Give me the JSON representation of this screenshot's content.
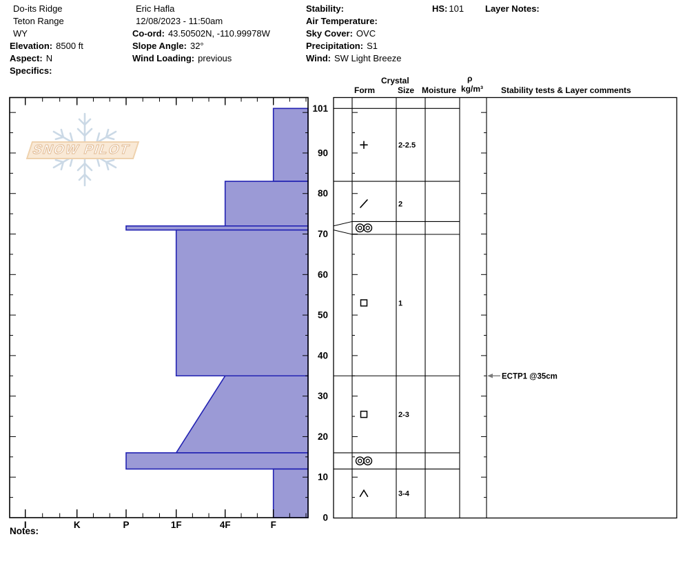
{
  "header": {
    "col1": [
      {
        "label": "",
        "value": "Do-its Ridge"
      },
      {
        "label": "",
        "value": "Teton Range"
      },
      {
        "label": "",
        "value": "WY"
      },
      {
        "label": "Elevation:",
        "value": "8500 ft"
      },
      {
        "label": "Aspect:",
        "value": "N"
      },
      {
        "label": "Specifics:",
        "value": ""
      }
    ],
    "col2": [
      {
        "label": "",
        "value": "Eric Hafla"
      },
      {
        "label": "",
        "value": "12/08/2023 - 11:50am"
      },
      {
        "label": "Co-ord:",
        "value": "43.50502N, -110.99978W"
      },
      {
        "label": "Slope Angle:",
        "value": "32°"
      },
      {
        "label": "Wind Loading:",
        "value": "previous"
      }
    ],
    "col3": [
      {
        "label": "Stability:",
        "value": ""
      },
      {
        "label": "Air Temperature:",
        "value": ""
      },
      {
        "label": "Sky Cover:",
        "value": "OVC"
      },
      {
        "label": "Precipitation:",
        "value": "S1"
      },
      {
        "label": "Wind:",
        "value": "SW Light Breeze"
      }
    ],
    "hs": {
      "label": "HS:",
      "value": "101"
    },
    "layer_notes_label": "Layer Notes:"
  },
  "logo": {
    "text": "SNOW PILOT"
  },
  "table_headers": {
    "crystal": "Crystal",
    "form": "Form",
    "size": "Size",
    "moisture": "Moisture",
    "rho": "ρ",
    "rho_units": "kg/m³",
    "stability": "Stability tests & Layer comments"
  },
  "notes_label": "Notes:",
  "chart_data": {
    "type": "bar",
    "subtype": "snow-profile-hardness",
    "title": "Snow profile, hardness vs height",
    "hs_cm": 101,
    "xlabel_categories_hardness": [
      "I",
      "K",
      "P",
      "1F",
      "4F",
      "F"
    ],
    "depth_tick_labels_cm": [
      0,
      10,
      20,
      30,
      40,
      50,
      60,
      70,
      80,
      90,
      101
    ],
    "layers": [
      {
        "top_cm": 101,
        "bottom_cm": 83,
        "hardness": "F",
        "form": "PP",
        "form_glyph": "plus",
        "grain_size_mm": "2-2.5"
      },
      {
        "top_cm": 83,
        "bottom_cm": 72,
        "hardness": "4F",
        "form": "DF",
        "form_glyph": "slash",
        "grain_size_mm": "2"
      },
      {
        "top_cm": 72,
        "bottom_cm": 71,
        "hardness": "P",
        "form": "MFcr",
        "form_glyph": "double-ring",
        "grain_size_mm": ""
      },
      {
        "top_cm": 71,
        "bottom_cm": 35,
        "hardness": "1F",
        "form": "FC",
        "form_glyph": "square",
        "grain_size_mm": "1"
      },
      {
        "top_cm": 35,
        "bottom_cm": 16,
        "hardness_top": "4F",
        "hardness_bottom": "1F",
        "form": "FC",
        "form_glyph": "square",
        "grain_size_mm": "2-3"
      },
      {
        "top_cm": 16,
        "bottom_cm": 12,
        "hardness": "P",
        "form": "MFcr",
        "form_glyph": "double-ring",
        "grain_size_mm": ""
      },
      {
        "top_cm": 12,
        "bottom_cm": 0,
        "hardness": "F",
        "form": "DH",
        "form_glyph": "caret",
        "grain_size_mm": "3-4"
      }
    ],
    "stability_tests": [
      {
        "label": "ECTP1 @35cm",
        "depth_cm": 35
      }
    ],
    "legend": "none",
    "grid": false,
    "colors": {
      "bar_fill": "#9b9ad6",
      "bar_border": "#2222b2",
      "arrow": "#7a7a7a"
    }
  }
}
